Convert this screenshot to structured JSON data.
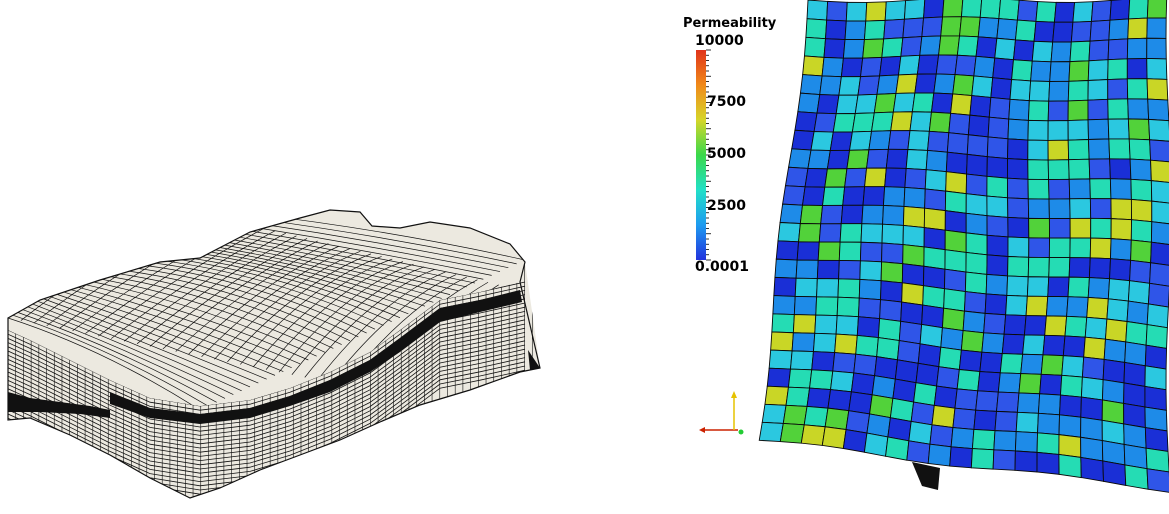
{
  "colorbar": {
    "title": "Permeability",
    "max_label": "10000",
    "tick_labels": [
      "7500",
      "5000",
      "2500"
    ],
    "min_label": "0.0001",
    "colors": [
      "#2233dd",
      "#1e9bf0",
      "#22e0c8",
      "#3ad84a",
      "#d6d62a",
      "#f08a1a",
      "#e0341a"
    ]
  },
  "grid_palette": {
    "deep_blue": "#1a2fd6",
    "blue": "#2f55e8",
    "mid_blue": "#1e8be8",
    "cyan": "#2bc8e0",
    "teal": "#25dcb4",
    "green": "#52d23a",
    "yellow": "#c9d626"
  },
  "mesh": {
    "surface_color": "#ece9e0",
    "line_color": "#111111"
  },
  "axes_triad": {
    "x_color": "#cc2200",
    "y_color": "#e6c200",
    "z_color": "#22cc33"
  }
}
